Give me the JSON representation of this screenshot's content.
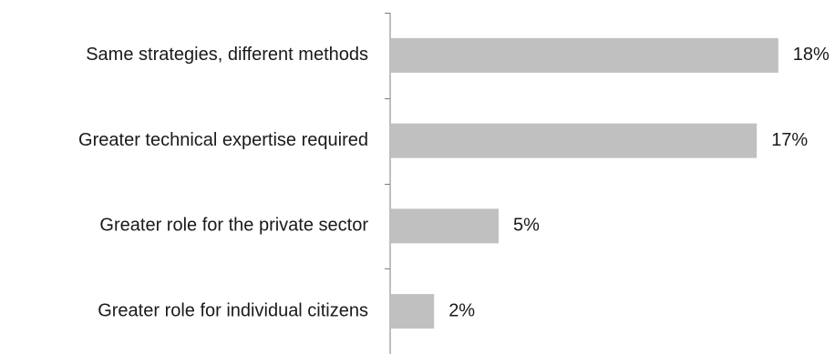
{
  "chart_data": {
    "type": "bar",
    "orientation": "horizontal",
    "categories": [
      "Same strategies, different methods",
      "Greater technical expertise required",
      "Greater role for the private sector",
      "Greater role for individual citizens"
    ],
    "values": [
      18,
      17,
      5,
      2
    ],
    "value_labels": [
      "18%",
      "17%",
      "5%",
      "2%"
    ],
    "title": "",
    "xlabel": "",
    "ylabel": "",
    "xlim": [
      0,
      20
    ],
    "grid": false,
    "legend": "none",
    "bar_color": "#c0c0c0",
    "axis_color": "#7f7f7f"
  }
}
